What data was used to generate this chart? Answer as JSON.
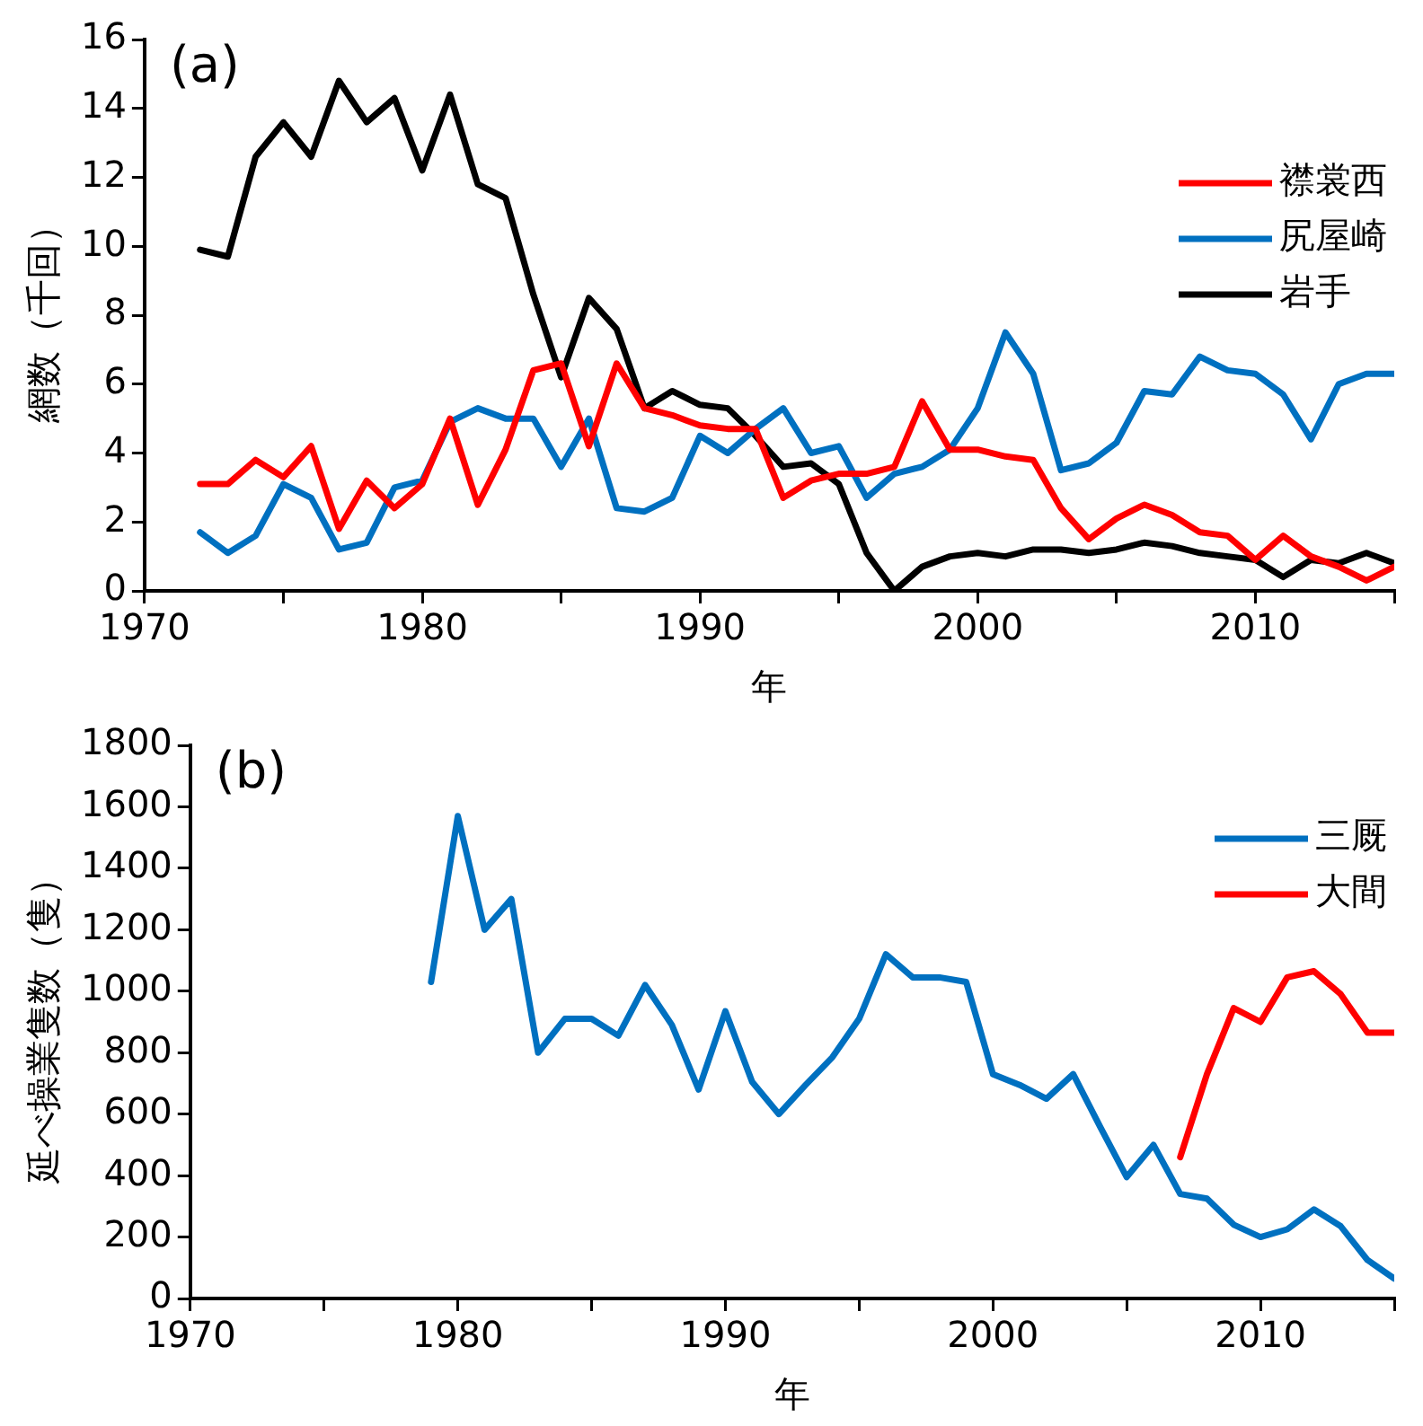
{
  "chart_data": [
    {
      "type": "line",
      "annotations": [
        "(a)"
      ],
      "xlabel": "年",
      "ylabel": "網数（千回）",
      "x": [
        1972,
        1973,
        1974,
        1975,
        1976,
        1977,
        1978,
        1979,
        1980,
        1981,
        1982,
        1983,
        1984,
        1985,
        1986,
        1987,
        1988,
        1989,
        1990,
        1991,
        1992,
        1993,
        1994,
        1995,
        1996,
        1997,
        1998,
        1999,
        2000,
        2001,
        2002,
        2003,
        2004,
        2005,
        2006,
        2007,
        2008,
        2009,
        2010,
        2011,
        2012,
        2013,
        2014,
        2015
      ],
      "series": [
        {
          "name": "襟裳西",
          "color": "#ff0000",
          "values": [
            3.1,
            3.1,
            3.8,
            3.3,
            4.2,
            1.8,
            3.2,
            2.4,
            3.1,
            5.0,
            2.5,
            4.1,
            6.4,
            6.6,
            4.2,
            6.6,
            5.3,
            5.1,
            4.8,
            4.7,
            4.7,
            2.7,
            3.2,
            3.4,
            3.4,
            3.6,
            5.5,
            4.1,
            4.1,
            3.9,
            3.8,
            2.4,
            1.5,
            2.1,
            2.5,
            2.2,
            1.7,
            1.6,
            0.9,
            1.6,
            1.0,
            0.7,
            0.3,
            0.7
          ]
        },
        {
          "name": "尻屋崎",
          "color": "#0070c0",
          "values": [
            1.7,
            1.1,
            1.6,
            3.1,
            2.7,
            1.2,
            1.4,
            3.0,
            3.2,
            4.9,
            5.3,
            5.0,
            5.0,
            3.6,
            5.0,
            2.4,
            2.3,
            2.7,
            4.5,
            4.0,
            4.7,
            5.3,
            4.0,
            4.2,
            2.7,
            3.4,
            3.6,
            4.1,
            5.3,
            7.5,
            6.3,
            3.5,
            3.7,
            4.3,
            5.8,
            5.7,
            6.8,
            6.4,
            6.3,
            5.7,
            4.4,
            6.0,
            6.3,
            6.3
          ]
        },
        {
          "name": "岩手",
          "color": "#000000",
          "values": [
            9.9,
            9.7,
            12.6,
            13.6,
            12.6,
            14.8,
            13.6,
            14.3,
            12.2,
            14.4,
            11.8,
            11.4,
            8.6,
            6.2,
            8.5,
            7.6,
            5.3,
            5.8,
            5.4,
            5.3,
            4.5,
            3.6,
            3.7,
            3.1,
            1.1,
            0,
            0.7,
            1.0,
            1.1,
            1.0,
            1.2,
            1.2,
            1.1,
            1.2,
            1.4,
            1.3,
            1.1,
            1.0,
            0.9,
            0.4,
            0.9,
            0.8,
            1.1,
            0.8
          ]
        }
      ],
      "xlim": [
        1970,
        2015
      ],
      "xticks": [
        1970,
        {
          "value": 1975,
          "label": null
        },
        1980,
        {
          "value": 1985,
          "label": null
        },
        1990,
        {
          "value": 1995,
          "label": null
        },
        2000,
        {
          "value": 2005,
          "label": null
        },
        2010,
        {
          "value": 2015,
          "label": null
        }
      ],
      "ylim": [
        0,
        16
      ],
      "yticks": [
        0,
        2,
        4,
        6,
        8,
        10,
        12,
        14,
        16
      ],
      "grid": false,
      "legend": "top right",
      "marker": "none",
      "line_style": "solid"
    },
    {
      "type": "line",
      "annotations": [
        "(b)"
      ],
      "xlabel": "年",
      "ylabel": "延べ操業隻数（隻）",
      "series": [
        {
          "name": "三厩",
          "color": "#0070c0",
          "x": [
            1979,
            1980,
            1981,
            1982,
            1983,
            1984,
            1985,
            1986,
            1987,
            1988,
            1989,
            1990,
            1991,
            1992,
            1993,
            1994,
            1995,
            1996,
            1997,
            1998,
            1999,
            2000,
            2001,
            2002,
            2003,
            2004,
            2005,
            2006,
            2007,
            2008,
            2009,
            2010,
            2011,
            2012,
            2013,
            2014,
            2015
          ],
          "values": [
            1030,
            1570,
            1200,
            1300,
            800,
            910,
            910,
            855,
            1020,
            890,
            680,
            935,
            705,
            600,
            695,
            785,
            910,
            1120,
            1045,
            1045,
            1030,
            730,
            695,
            650,
            730,
            560,
            395,
            500,
            340,
            325,
            240,
            200,
            225,
            290,
            235,
            125,
            65
          ]
        },
        {
          "name": "大間",
          "color": "#ff0000",
          "x": [
            2007,
            2008,
            2009,
            2010,
            2011,
            2012,
            2013,
            2014,
            2015
          ],
          "values": [
            460,
            730,
            945,
            900,
            1045,
            1065,
            990,
            865,
            865
          ]
        }
      ],
      "xlim": [
        1970,
        2015
      ],
      "xticks": [
        1970,
        {
          "value": 1975,
          "label": null
        },
        1980,
        {
          "value": 1985,
          "label": null
        },
        1990,
        {
          "value": 1995,
          "label": null
        },
        2000,
        {
          "value": 2005,
          "label": null
        },
        2010,
        {
          "value": 2015,
          "label": null
        }
      ],
      "ylim": [
        0,
        1800
      ],
      "yticks": [
        0,
        200,
        400,
        600,
        800,
        1000,
        1200,
        1400,
        1600,
        1800
      ],
      "grid": false,
      "legend": "top right",
      "marker": "none",
      "line_style": "solid"
    }
  ]
}
